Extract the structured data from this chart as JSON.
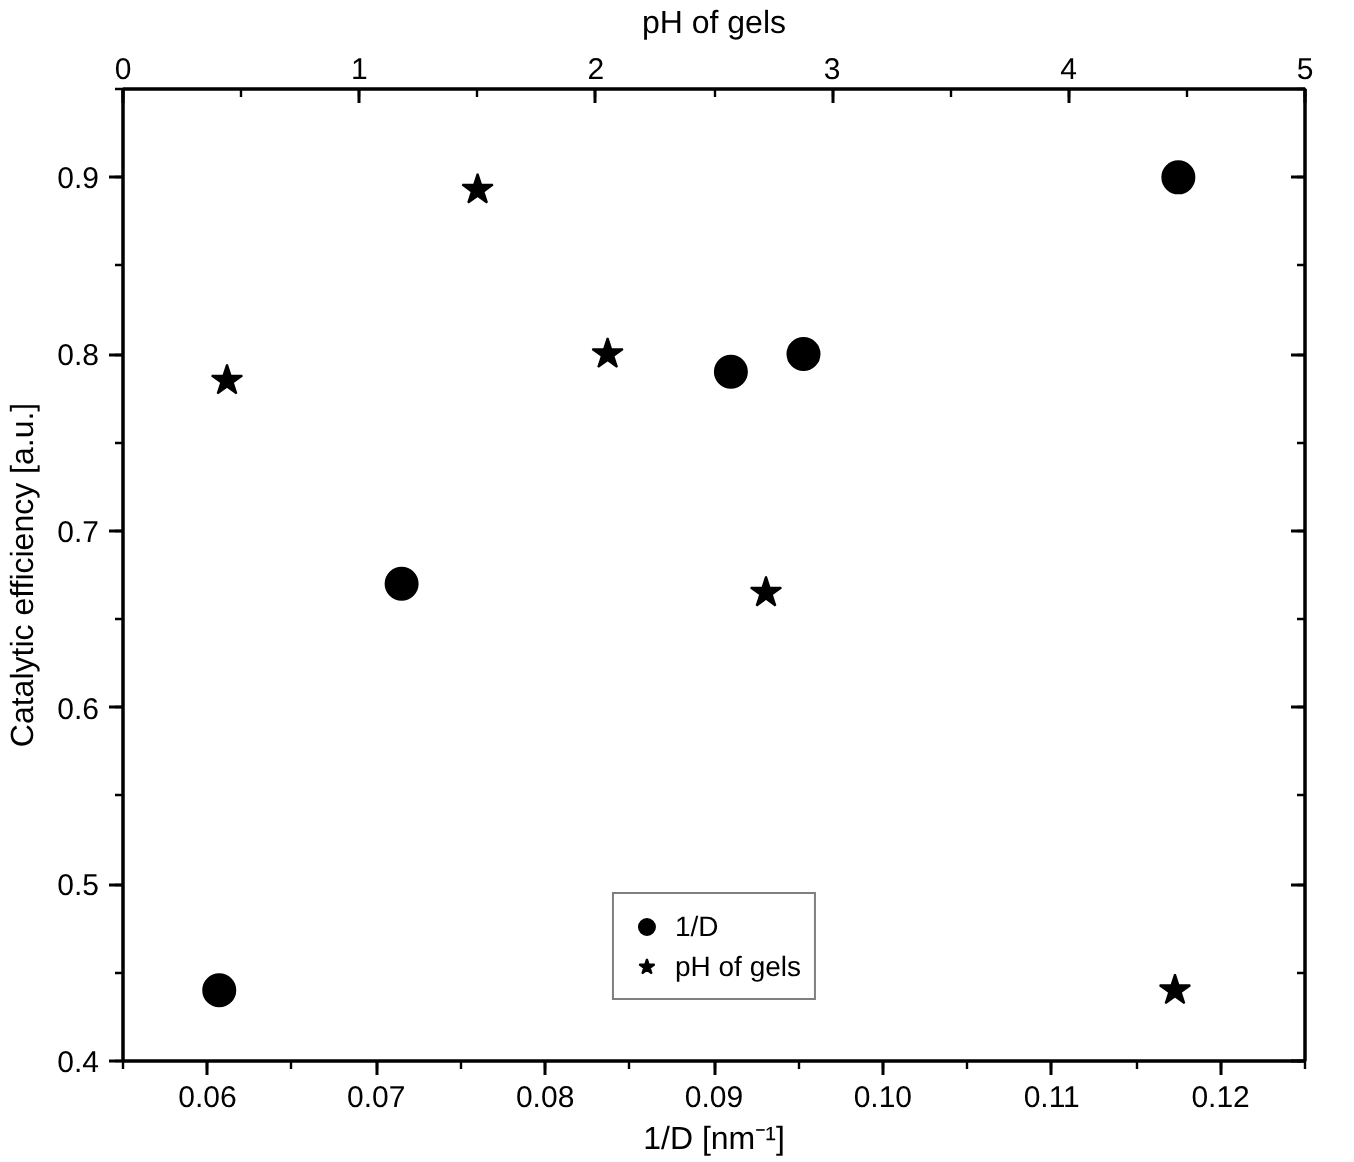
{
  "chart_data": {
    "type": "scatter",
    "xlabel": "1/D [nm⁻¹]",
    "ylabel": "Catalytic efficiency [a.u.]",
    "x2label": "pH of gels",
    "xlim": [
      0.055,
      0.125
    ],
    "xticks": [
      0.06,
      0.07,
      0.08,
      0.09,
      {
        "value": 0.1,
        "label": "0.10"
      },
      0.11,
      0.12
    ],
    "x2lim": [
      0,
      5
    ],
    "x2ticks": [
      0,
      1,
      2,
      3,
      4,
      5
    ],
    "ylim": [
      0.4,
      0.95
    ],
    "yticks": [
      0.4,
      0.5,
      0.6,
      0.7,
      0.8,
      0.9
    ],
    "legend": "bottom",
    "series": [
      {
        "name": "1/D",
        "color": "#000000",
        "marker": "circle",
        "x": [
          0.0607,
          0.0715,
          0.091,
          0.0953,
          0.1175
        ],
        "values": [
          0.44,
          0.67,
          0.79,
          0.8,
          0.9
        ]
      },
      {
        "name": "pH of gels",
        "color": "#000000",
        "marker": "star",
        "axis": "x2",
        "x": [
          0.44,
          1.5,
          2.05,
          2.72,
          4.45
        ],
        "values": [
          0.785,
          0.893,
          0.8,
          0.665,
          0.44
        ]
      }
    ]
  }
}
